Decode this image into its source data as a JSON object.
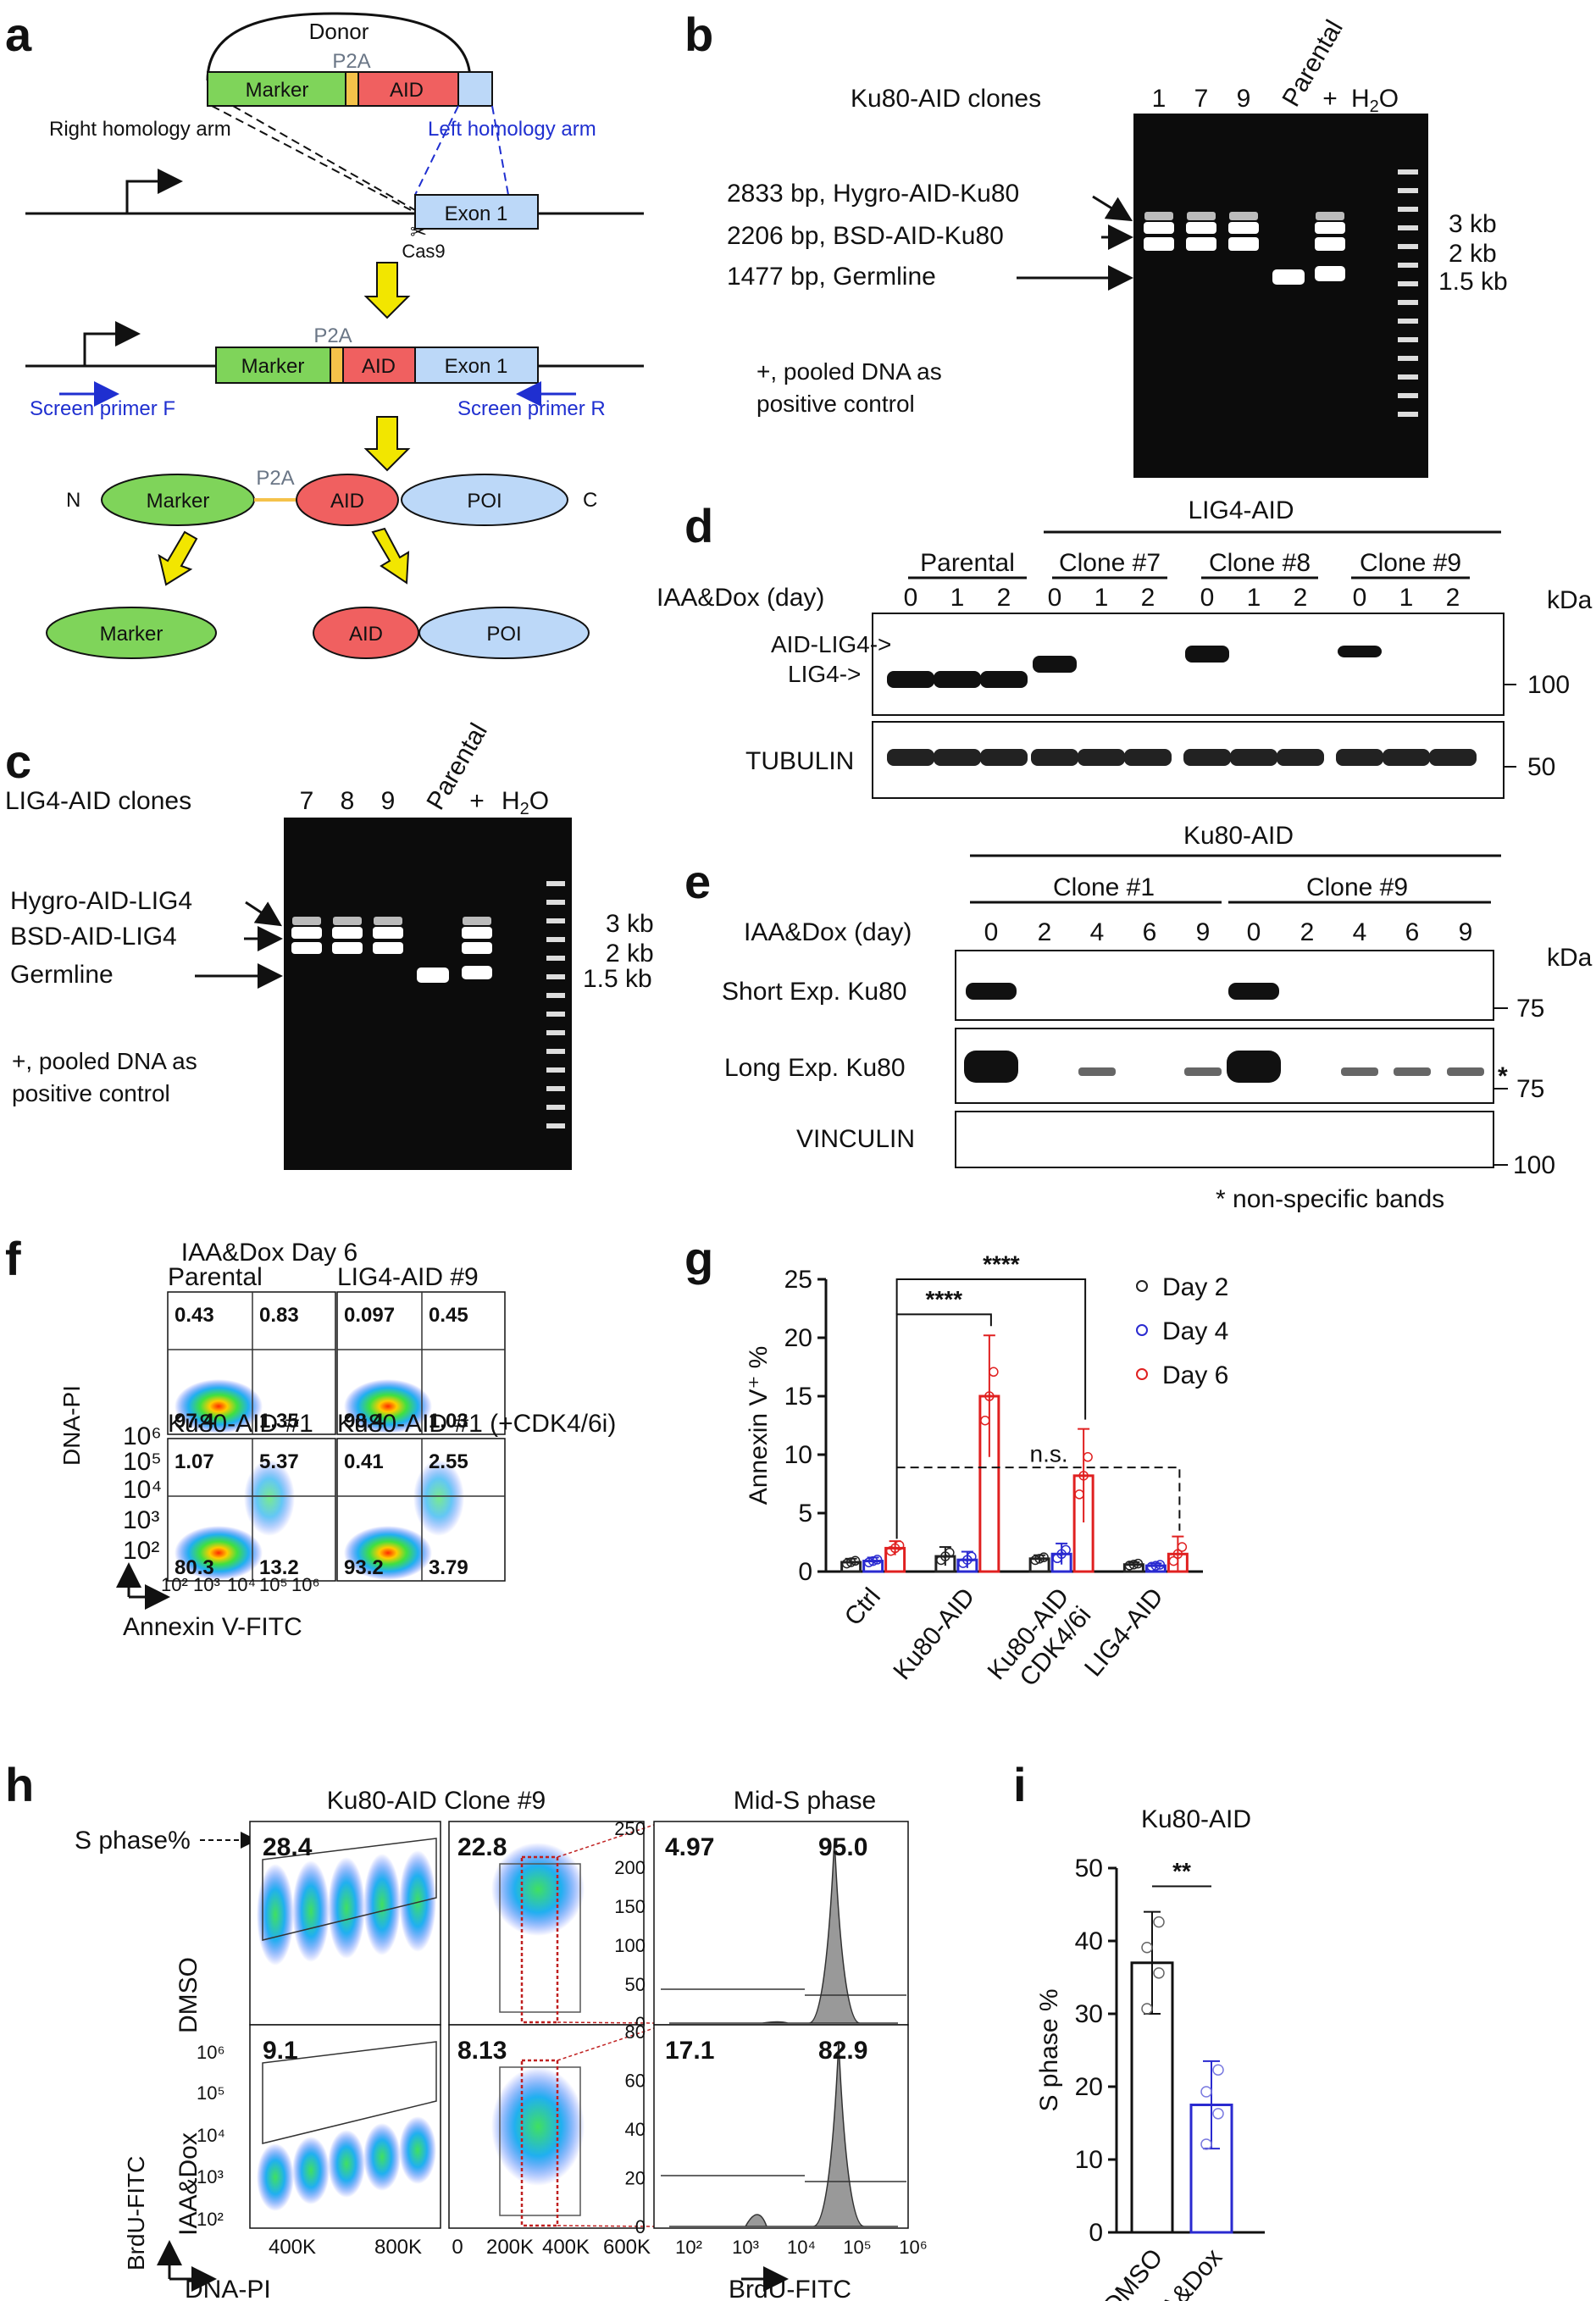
{
  "panel_labels": {
    "a": "a",
    "b": "b",
    "c": "c",
    "d": "d",
    "e": "e",
    "f": "f",
    "g": "g",
    "h": "h",
    "i": "i"
  },
  "panel_a": {
    "donor": "Donor",
    "p2a": "P2A",
    "marker": "Marker",
    "aid": "AID",
    "right_arm": "Right homology arm",
    "left_arm": "Left homology arm",
    "exon1": "Exon 1",
    "cas9": "Cas9",
    "primer_f": "Screen primer F",
    "primer_r": "Screen primer R",
    "n_term": "N",
    "c_term": "C",
    "poi": "POI"
  },
  "panel_b": {
    "title": "Ku80-AID clones",
    "lanes": [
      "1",
      "7",
      "9",
      "Parental",
      "+",
      "H2O"
    ],
    "bands": [
      "2833 bp, Hygro-AID-Ku80",
      "2206 bp, BSD-AID-Ku80",
      "1477 bp, Germline"
    ],
    "sizes": [
      "3 kb",
      "2 kb",
      "1.5 kb"
    ],
    "note_line1": "+, pooled DNA as",
    "note_line2": "positive control"
  },
  "panel_c": {
    "title": "LIG4-AID clones",
    "lanes": [
      "7",
      "8",
      "9",
      "Parental",
      "+",
      "H2O"
    ],
    "bands": [
      "Hygro-AID-LIG4",
      "BSD-AID-LIG4",
      "Germline"
    ],
    "sizes": [
      "3 kb",
      "2 kb",
      "1.5 kb"
    ],
    "note_line1": "+, pooled DNA as",
    "note_line2": "positive control"
  },
  "panel_d": {
    "header": "LIG4-AID",
    "groups": [
      "Parental",
      "Clone #7",
      "Clone #8",
      "Clone #9"
    ],
    "treat_label": "IAA&Dox (day)",
    "days": [
      "0",
      "1",
      "2"
    ],
    "kda": "kDa",
    "rows": [
      "AID-LIG4->",
      "LIG4->",
      "TUBULIN"
    ],
    "markers": [
      "100",
      "50"
    ]
  },
  "panel_e": {
    "header": "Ku80-AID",
    "groups": [
      "Clone #1",
      "Clone #9"
    ],
    "treat_label": "IAA&Dox (day)",
    "days": [
      "0",
      "2",
      "4",
      "6",
      "9"
    ],
    "kda": "kDa",
    "rows": [
      "Short Exp. Ku80",
      "Long Exp. Ku80",
      "VINCULIN"
    ],
    "markers": [
      "75",
      "75",
      "100"
    ],
    "star": "*",
    "footnote": "* non-specific bands"
  },
  "panel_f": {
    "title": "IAA&Dox Day 6",
    "plots": [
      {
        "label": "Parental",
        "q": [
          "0.43",
          "0.83",
          "97.4",
          "1.35"
        ]
      },
      {
        "label": "LIG4-AID #9",
        "q": [
          "0.097",
          "0.45",
          "98.4",
          "1.03"
        ]
      },
      {
        "label": "Ku80-AID #1",
        "q": [
          "1.07",
          "5.37",
          "80.3",
          "13.2"
        ]
      },
      {
        "label": "Ku80-AID #1 (+CDK4/6i)",
        "q": [
          "0.41",
          "2.55",
          "93.2",
          "3.79"
        ]
      }
    ],
    "y_ticks": [
      "10⁶",
      "10⁵",
      "10⁴",
      "10³",
      "10²"
    ],
    "x_ticks": [
      "10²",
      "10³",
      "10⁴",
      "10⁵",
      "10⁶"
    ],
    "ylabel": "DNA-PI",
    "xlabel": "Annexin V-FITC"
  },
  "chart_data": [
    {
      "type": "bar",
      "panel": "g",
      "ylabel": "Annexin V⁺ %",
      "ylim": [
        0,
        25
      ],
      "yticks": [
        0,
        5,
        10,
        15,
        20,
        25
      ],
      "categories": [
        "Ctrl",
        "Ku80-AID",
        "Ku80-AID CDK4/6i",
        "LIG4-AID"
      ],
      "series": [
        {
          "name": "Day 2",
          "color": "#222222",
          "values": [
            0.8,
            1.3,
            1.1,
            0.6
          ],
          "err": [
            0.3,
            0.8,
            0.3,
            0.2
          ]
        },
        {
          "name": "Day 4",
          "color": "#2a2ad0",
          "values": [
            0.9,
            1.0,
            1.5,
            0.5
          ],
          "err": [
            0.3,
            0.7,
            0.9,
            0.2
          ]
        },
        {
          "name": "Day 6",
          "color": "#e02020",
          "values": [
            2.0,
            15.0,
            8.2,
            1.5
          ],
          "err": [
            0.6,
            5.2,
            4.0,
            1.5
          ]
        }
      ],
      "annotations": [
        "****",
        "****",
        "n.s."
      ],
      "legend": "top-right"
    },
    {
      "type": "bar",
      "panel": "i",
      "title": "Ku80-AID",
      "ylabel": "S phase %",
      "ylim": [
        0,
        50
      ],
      "yticks": [
        0,
        10,
        20,
        30,
        40,
        50
      ],
      "categories": [
        "DMSO",
        "IAA&Dox"
      ],
      "values": [
        37,
        17.5
      ],
      "err": [
        7,
        6
      ],
      "colors": [
        "#111111",
        "#2a2ad0"
      ],
      "annotations": [
        "**"
      ]
    }
  ],
  "panel_h": {
    "title": "Ku80-AID Clone #9",
    "hist_title": "Mid-S phase",
    "s_phase_label": "S phase%",
    "rows": [
      {
        "label": "DMSO",
        "s": "28.4",
        "mid": "22.8",
        "neg": "4.97",
        "pos": "95.0"
      },
      {
        "label": "IAA&Dox",
        "s": "9.1",
        "mid": "8.13",
        "neg": "17.1",
        "pos": "82.9"
      }
    ],
    "y_ticks": [
      "10⁶",
      "10⁵",
      "10⁴",
      "10³",
      "10²"
    ],
    "x_ticks1": [
      "400K",
      "800K"
    ],
    "x_ticks2": [
      "0",
      "200K",
      "400K",
      "600K"
    ],
    "hist_ticks_top": [
      "250",
      "200",
      "150",
      "100",
      "50",
      "0"
    ],
    "hist_ticks_bottom": [
      "80",
      "60",
      "40",
      "20",
      "0"
    ],
    "hist_xticks": [
      "10²",
      "10³",
      "10⁴",
      "10⁵",
      "10⁶"
    ],
    "ylabel": "BrdU-FITC",
    "xlabel": "DNA-PI",
    "hist_xlabel": "BrdU-FITC"
  }
}
